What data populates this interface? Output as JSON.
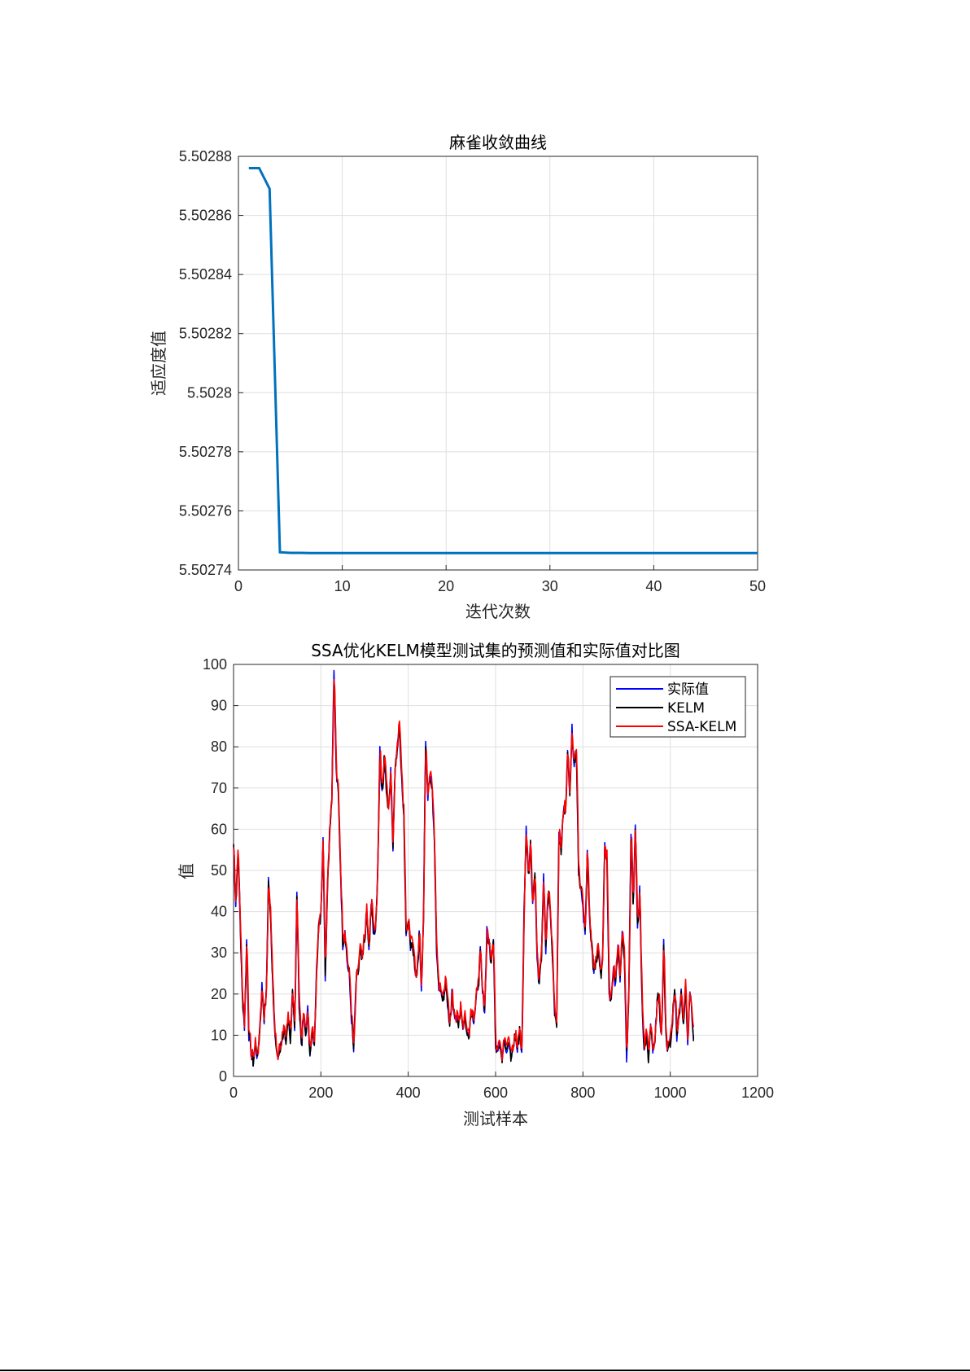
{
  "chart_data": [
    {
      "type": "line",
      "title": "麻雀收敛曲线",
      "xlabel": "迭代次数",
      "ylabel": "适应度值",
      "xlim": [
        0,
        50
      ],
      "ylim": [
        5.50274,
        5.50288
      ],
      "xticks": [
        "0",
        "10",
        "20",
        "30",
        "40",
        "50"
      ],
      "yticks": [
        "5.50274",
        "5.50276",
        "5.50278",
        "5.5028",
        "5.50282",
        "5.50284",
        "5.50286",
        "5.50288"
      ],
      "grid": true,
      "series": [
        {
          "color": "#0072bd",
          "x": [
            1,
            2,
            3,
            4,
            5,
            6,
            7,
            8,
            9,
            10,
            15,
            20,
            25,
            30,
            35,
            40,
            45,
            50
          ],
          "y": [
            5.502876,
            5.502876,
            5.502869,
            5.502746,
            5.5027458,
            5.5027458,
            5.5027457,
            5.5027457,
            5.5027457,
            5.5027457,
            5.5027457,
            5.5027457,
            5.5027457,
            5.5027457,
            5.5027457,
            5.5027457,
            5.5027457,
            5.5027457
          ]
        }
      ]
    },
    {
      "type": "line",
      "title": "SSA优化KELM模型测试集的预测值和实际值对比图",
      "xlabel": "测试样本",
      "ylabel": "值",
      "xlim": [
        0,
        1200
      ],
      "ylim": [
        0,
        100
      ],
      "xticks": [
        "0",
        "200",
        "400",
        "600",
        "800",
        "1000",
        "1200"
      ],
      "yticks": [
        "0",
        "10",
        "20",
        "30",
        "40",
        "50",
        "60",
        "70",
        "80",
        "90",
        "100"
      ],
      "grid": true,
      "legend": "top-right",
      "keypoints_x": [
        0,
        5,
        10,
        15,
        20,
        25,
        30,
        35,
        40,
        45,
        50,
        55,
        60,
        65,
        70,
        75,
        80,
        85,
        90,
        95,
        100,
        105,
        110,
        115,
        120,
        125,
        130,
        135,
        140,
        145,
        150,
        155,
        160,
        165,
        170,
        175,
        180,
        185,
        190,
        195,
        200,
        205,
        210,
        215,
        220,
        225,
        230,
        235,
        240,
        245,
        250,
        255,
        260,
        265,
        270,
        275,
        280,
        285,
        290,
        295,
        300,
        305,
        310,
        315,
        320,
        325,
        330,
        335,
        340,
        345,
        350,
        355,
        360,
        365,
        370,
        375,
        380,
        385,
        390,
        395,
        400,
        405,
        410,
        415,
        420,
        425,
        430,
        435,
        440,
        445,
        450,
        455,
        460,
        465,
        470,
        475,
        480,
        485,
        490,
        495,
        500,
        505,
        510,
        515,
        520,
        525,
        530,
        535,
        540,
        545,
        550,
        555,
        560,
        565,
        570,
        575,
        580,
        585,
        590,
        595,
        600,
        605,
        610,
        615,
        620,
        625,
        630,
        635,
        640,
        645,
        650,
        655,
        660,
        665,
        670,
        675,
        680,
        685,
        690,
        695,
        700,
        705,
        710,
        715,
        720,
        725,
        730,
        735,
        740,
        745,
        750,
        755,
        760,
        765,
        770,
        775,
        780,
        785,
        790,
        795,
        800,
        805,
        810,
        815,
        820,
        825,
        830,
        835,
        840,
        845,
        850,
        855,
        860,
        865,
        870,
        875,
        880,
        885,
        890,
        895,
        900,
        905,
        910,
        915,
        920,
        925,
        930,
        935,
        940,
        945,
        950,
        955,
        960,
        965,
        970,
        975,
        980,
        985,
        990,
        995,
        1000,
        1005,
        1010,
        1015,
        1020,
        1025,
        1030,
        1035,
        1040,
        1045,
        1050,
        1055,
        1060,
        1065,
        1070,
        1075,
        1080,
        1085,
        1090,
        1095,
        1100
      ],
      "keypoints_y": [
        56,
        42,
        55,
        38,
        20,
        12,
        33,
        10,
        6,
        3,
        8,
        4,
        12,
        22,
        14,
        20,
        48,
        38,
        22,
        10,
        4,
        6,
        8,
        12,
        9,
        13,
        8,
        22,
        12,
        44,
        18,
        8,
        14,
        10,
        16,
        6,
        10,
        8,
        28,
        36,
        40,
        58,
        24,
        48,
        60,
        68,
        100,
        74,
        68,
        50,
        32,
        36,
        28,
        24,
        14,
        6,
        22,
        26,
        30,
        28,
        34,
        40,
        30,
        42,
        36,
        34,
        50,
        80,
        68,
        78,
        70,
        64,
        74,
        55,
        76,
        80,
        86,
        72,
        62,
        35,
        38,
        32,
        33,
        26,
        24,
        34,
        22,
        40,
        82,
        68,
        72,
        70,
        55,
        30,
        22,
        20,
        18,
        24,
        16,
        12,
        20,
        16,
        14,
        12,
        18,
        12,
        15,
        10,
        12,
        16,
        14,
        18,
        22,
        30,
        20,
        16,
        36,
        32,
        28,
        34,
        8,
        6,
        8,
        5,
        10,
        6,
        8,
        4,
        7,
        10,
        6,
        12,
        5,
        40,
        60,
        50,
        56,
        42,
        50,
        28,
        22,
        30,
        48,
        30,
        45,
        40,
        30,
        16,
        14,
        60,
        55,
        64,
        66,
        78,
        70,
        84,
        76,
        80,
        50,
        46,
        40,
        34,
        56,
        38,
        30,
        26,
        28,
        32,
        24,
        30,
        56,
        52,
        20,
        18,
        26,
        22,
        32,
        24,
        36,
        30,
        4,
        22,
        60,
        42,
        60,
        36,
        45,
        20,
        6,
        10,
        4,
        12,
        6,
        8,
        20,
        16,
        10,
        32,
        10,
        6,
        8,
        14,
        22,
        10,
        16,
        20,
        12,
        24,
        8,
        22,
        14,
        6
      ],
      "series": [
        {
          "name": "实际值",
          "color": "#0000ff"
        },
        {
          "name": "KELM",
          "color": "#000000"
        },
        {
          "name": "SSA-KELM",
          "color": "#ff0000"
        }
      ]
    }
  ]
}
